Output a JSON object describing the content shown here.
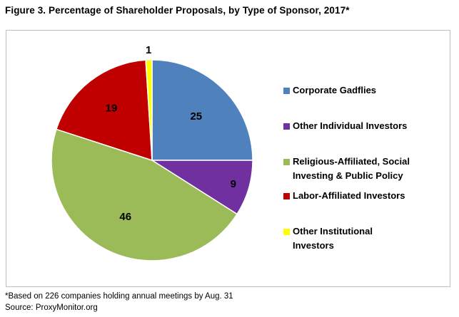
{
  "chart_data": {
    "type": "pie",
    "title": "Figure 3. Percentage of Shareholder Proposals, by Type of Sponsor, 2017*",
    "categories": [
      "Corporate Gadflies",
      "Other Individual Investors",
      "Religious-Affiliated, Social Investing & Public Policy",
      "Labor-Affiliated Investors",
      "Other Institutional Investors"
    ],
    "values": [
      25,
      9,
      46,
      19,
      1
    ],
    "colors": [
      "#4f81bd",
      "#7030a0",
      "#9bbb59",
      "#c00000",
      "#ffff00"
    ],
    "legend_lines": [
      [
        "Corporate Gadflies"
      ],
      [
        "Other Individual Investors"
      ],
      [
        "Religious-Affiliated, Social",
        "Investing & Public Policy"
      ],
      [
        "Labor-Affiliated Investors"
      ],
      [
        "Other Institutional",
        "Investors"
      ]
    ],
    "legend_position": "right"
  },
  "footnote": {
    "note": "*Based on 226 companies holding annual meetings by Aug. 31",
    "source": "Source: ProxyMonitor.org"
  }
}
